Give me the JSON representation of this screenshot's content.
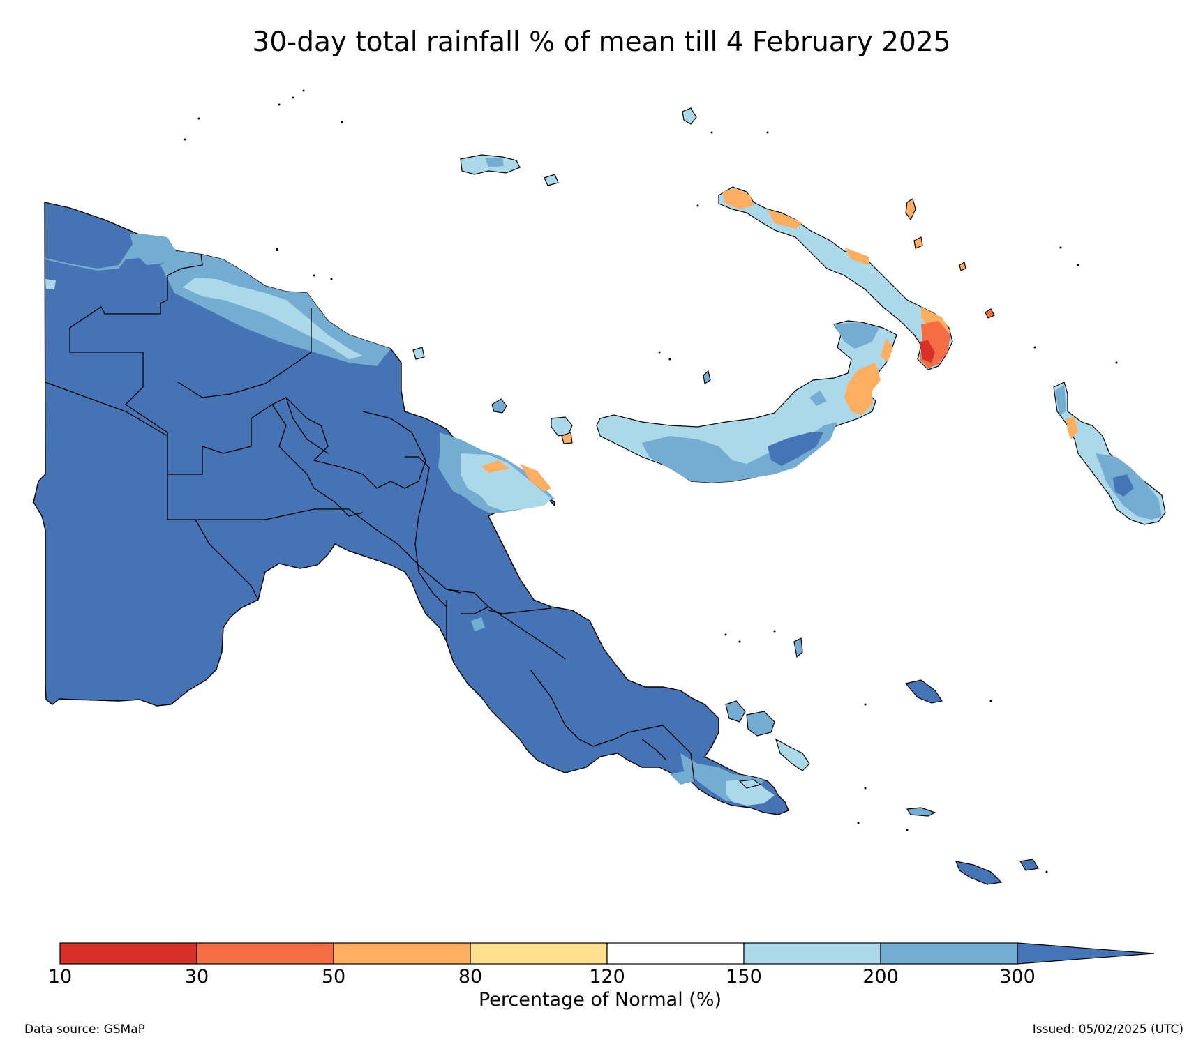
{
  "title": "30-day total rainfall % of mean till 4 February 2025",
  "colorbar": {
    "label": "Percentage of Normal (%)",
    "ticks": [
      "10",
      "30",
      "50",
      "80",
      "120",
      "150",
      "200",
      "300"
    ],
    "bins": [
      {
        "range": "10-30",
        "color": "#d73027"
      },
      {
        "range": "30-50",
        "color": "#f46d43"
      },
      {
        "range": "50-80",
        "color": "#fdae61"
      },
      {
        "range": "80-120",
        "color": "#fee090"
      },
      {
        "range": "120-150",
        "color": "#ffffff"
      },
      {
        "range": "150-200",
        "color": "#abd9e9"
      },
      {
        "range": "200-300",
        "color": "#74add1"
      },
      {
        "range": ">300",
        "color": "#4575b4"
      }
    ],
    "extend": "max"
  },
  "footer": {
    "source": "Data source: GSMaP",
    "issued": "Issued: 05/02/2025 (UTC)"
  }
}
